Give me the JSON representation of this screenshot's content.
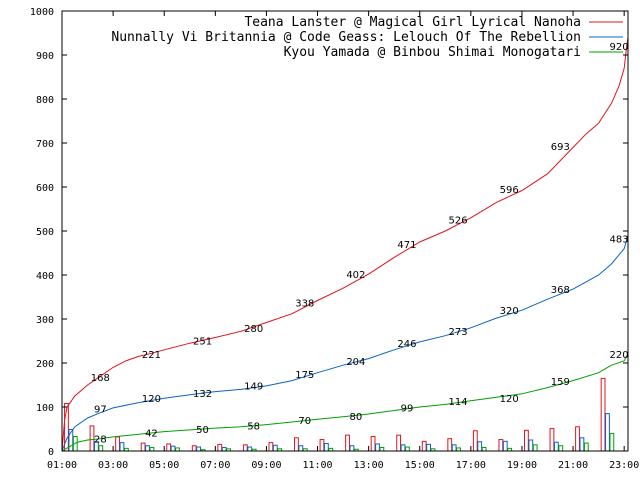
{
  "chart_data": {
    "type": "line",
    "xlim": [
      0,
      22.15
    ],
    "ylim": [
      0,
      1000
    ],
    "x_ticks": [
      {
        "x": 0,
        "label": "01:00"
      },
      {
        "x": 2,
        "label": "03:00"
      },
      {
        "x": 4,
        "label": "05:00"
      },
      {
        "x": 6,
        "label": "07:00"
      },
      {
        "x": 8,
        "label": "09:00"
      },
      {
        "x": 10,
        "label": "11:00"
      },
      {
        "x": 12,
        "label": "13:00"
      },
      {
        "x": 14,
        "label": "15:00"
      },
      {
        "x": 16,
        "label": "17:00"
      },
      {
        "x": 18,
        "label": "19:00"
      },
      {
        "x": 20,
        "label": "21:00"
      },
      {
        "x": 22,
        "label": "23:00"
      }
    ],
    "y_ticks": [
      0,
      100,
      200,
      300,
      400,
      500,
      600,
      700,
      800,
      900,
      1000
    ],
    "legend_position": "top-right",
    "series": [
      {
        "name": "Teana Lanster @ Magical Girl Lyrical Nanoha",
        "color": "#e0141e",
        "points": [
          [
            0,
            0
          ],
          [
            0.1,
            70
          ],
          [
            0.2,
            100
          ],
          [
            0.5,
            125
          ],
          [
            1,
            150
          ],
          [
            1.5,
            170
          ],
          [
            2,
            190
          ],
          [
            2.5,
            205
          ],
          [
            3,
            215
          ],
          [
            3.5,
            222
          ],
          [
            4,
            230
          ],
          [
            5,
            245
          ],
          [
            6,
            258
          ],
          [
            7,
            272
          ],
          [
            8,
            292
          ],
          [
            9,
            312
          ],
          [
            10,
            342
          ],
          [
            11,
            370
          ],
          [
            12,
            402
          ],
          [
            13,
            440
          ],
          [
            14,
            475
          ],
          [
            15,
            500
          ],
          [
            16,
            530
          ],
          [
            17,
            565
          ],
          [
            18,
            592
          ],
          [
            19,
            630
          ],
          [
            20,
            690
          ],
          [
            20.5,
            720
          ],
          [
            21,
            745
          ],
          [
            21.5,
            790
          ],
          [
            21.8,
            830
          ],
          [
            22,
            870
          ],
          [
            22.1,
            920
          ],
          [
            22.15,
            940
          ]
        ],
        "labels": [
          {
            "x": 1.5,
            "y": 168,
            "text": "168"
          },
          {
            "x": 3.5,
            "y": 221,
            "text": "221"
          },
          {
            "x": 5.5,
            "y": 251,
            "text": "251"
          },
          {
            "x": 7.5,
            "y": 280,
            "text": "280"
          },
          {
            "x": 9.5,
            "y": 338,
            "text": "338"
          },
          {
            "x": 11.5,
            "y": 402,
            "text": "402"
          },
          {
            "x": 13.5,
            "y": 471,
            "text": "471"
          },
          {
            "x": 15.5,
            "y": 526,
            "text": "526"
          },
          {
            "x": 17.5,
            "y": 596,
            "text": "596"
          },
          {
            "x": 19.5,
            "y": 693,
            "text": "693"
          },
          {
            "x": 21.8,
            "y": 920,
            "text": "920"
          }
        ]
      },
      {
        "name": "Nunnally Vi Britannia @ Code Geass: Lelouch Of The Rebellion",
        "color": "#0a64c8",
        "points": [
          [
            0,
            0
          ],
          [
            0.2,
            30
          ],
          [
            0.5,
            55
          ],
          [
            1,
            75
          ],
          [
            1.5,
            87
          ],
          [
            2,
            98
          ],
          [
            3,
            110
          ],
          [
            4,
            120
          ],
          [
            5,
            128
          ],
          [
            6,
            135
          ],
          [
            7,
            140
          ],
          [
            8,
            148
          ],
          [
            9,
            160
          ],
          [
            10,
            178
          ],
          [
            11,
            195
          ],
          [
            12,
            210
          ],
          [
            13,
            230
          ],
          [
            14,
            248
          ],
          [
            15,
            262
          ],
          [
            16,
            280
          ],
          [
            17,
            302
          ],
          [
            18,
            320
          ],
          [
            19,
            345
          ],
          [
            20,
            368
          ],
          [
            21,
            400
          ],
          [
            21.5,
            425
          ],
          [
            22,
            460
          ],
          [
            22.15,
            490
          ]
        ],
        "labels": [
          {
            "x": 1.5,
            "y": 97,
            "text": "97"
          },
          {
            "x": 3.5,
            "y": 120,
            "text": "120"
          },
          {
            "x": 5.5,
            "y": 132,
            "text": "132"
          },
          {
            "x": 7.5,
            "y": 149,
            "text": "149"
          },
          {
            "x": 9.5,
            "y": 175,
            "text": "175"
          },
          {
            "x": 11.5,
            "y": 204,
            "text": "204"
          },
          {
            "x": 13.5,
            "y": 246,
            "text": "246"
          },
          {
            "x": 15.5,
            "y": 273,
            "text": "273"
          },
          {
            "x": 17.5,
            "y": 320,
            "text": "320"
          },
          {
            "x": 19.5,
            "y": 368,
            "text": "368"
          },
          {
            "x": 21.8,
            "y": 483,
            "text": "483"
          }
        ]
      },
      {
        "name": "Kyou Yamada @ Binbou Shimai Monogatari",
        "color": "#00a000",
        "points": [
          [
            0,
            0
          ],
          [
            0.3,
            10
          ],
          [
            0.6,
            20
          ],
          [
            1,
            25
          ],
          [
            1.5,
            28
          ],
          [
            2,
            32
          ],
          [
            3,
            38
          ],
          [
            4,
            44
          ],
          [
            5,
            48
          ],
          [
            6,
            52
          ],
          [
            7,
            55
          ],
          [
            8,
            60
          ],
          [
            9,
            66
          ],
          [
            10,
            72
          ],
          [
            11,
            78
          ],
          [
            12,
            84
          ],
          [
            13,
            92
          ],
          [
            14,
            100
          ],
          [
            15,
            106
          ],
          [
            16,
            114
          ],
          [
            17,
            122
          ],
          [
            18,
            130
          ],
          [
            19,
            144
          ],
          [
            20,
            160
          ],
          [
            21,
            178
          ],
          [
            21.5,
            195
          ],
          [
            22,
            205
          ],
          [
            22.15,
            222
          ]
        ],
        "labels": [
          {
            "x": 1.5,
            "y": 28,
            "text": "28"
          },
          {
            "x": 3.5,
            "y": 42,
            "text": "42"
          },
          {
            "x": 5.5,
            "y": 50,
            "text": "50"
          },
          {
            "x": 7.5,
            "y": 58,
            "text": "58"
          },
          {
            "x": 9.5,
            "y": 70,
            "text": "70"
          },
          {
            "x": 11.5,
            "y": 80,
            "text": "80"
          },
          {
            "x": 13.5,
            "y": 99,
            "text": "99"
          },
          {
            "x": 15.5,
            "y": 114,
            "text": "114"
          },
          {
            "x": 17.5,
            "y": 120,
            "text": "120"
          },
          {
            "x": 19.5,
            "y": 159,
            "text": "159"
          },
          {
            "x": 21.8,
            "y": 220,
            "text": "220"
          }
        ]
      }
    ],
    "hourly_bars": [
      {
        "hour": 0,
        "values": [
          108,
          49,
          33
        ]
      },
      {
        "hour": 1,
        "values": [
          57,
          21,
          12
        ]
      },
      {
        "hour": 2,
        "values": [
          32,
          19,
          6
        ]
      },
      {
        "hour": 3,
        "values": [
          18,
          12,
          8
        ]
      },
      {
        "hour": 4,
        "values": [
          16,
          11,
          7
        ]
      },
      {
        "hour": 5,
        "values": [
          12,
          9,
          3
        ]
      },
      {
        "hour": 6,
        "values": [
          15,
          8,
          5
        ]
      },
      {
        "hour": 7,
        "values": [
          14,
          9,
          4
        ]
      },
      {
        "hour": 8,
        "values": [
          19,
          13,
          5
        ]
      },
      {
        "hour": 9,
        "values": [
          30,
          12,
          5
        ]
      },
      {
        "hour": 10,
        "values": [
          26,
          17,
          6
        ]
      },
      {
        "hour": 11,
        "values": [
          36,
          12,
          4
        ]
      },
      {
        "hour": 12,
        "values": [
          33,
          16,
          8
        ]
      },
      {
        "hour": 13,
        "values": [
          36,
          14,
          9
        ]
      },
      {
        "hour": 14,
        "values": [
          22,
          15,
          5
        ]
      },
      {
        "hour": 15,
        "values": [
          28,
          14,
          7
        ]
      },
      {
        "hour": 16,
        "values": [
          46,
          21,
          8
        ]
      },
      {
        "hour": 17,
        "values": [
          26,
          22,
          6
        ]
      },
      {
        "hour": 18,
        "values": [
          47,
          25,
          14
        ]
      },
      {
        "hour": 19,
        "values": [
          51,
          20,
          12
        ]
      },
      {
        "hour": 20,
        "values": [
          55,
          30,
          18
        ]
      },
      {
        "hour": 21,
        "values": [
          165,
          85,
          40
        ]
      }
    ]
  }
}
